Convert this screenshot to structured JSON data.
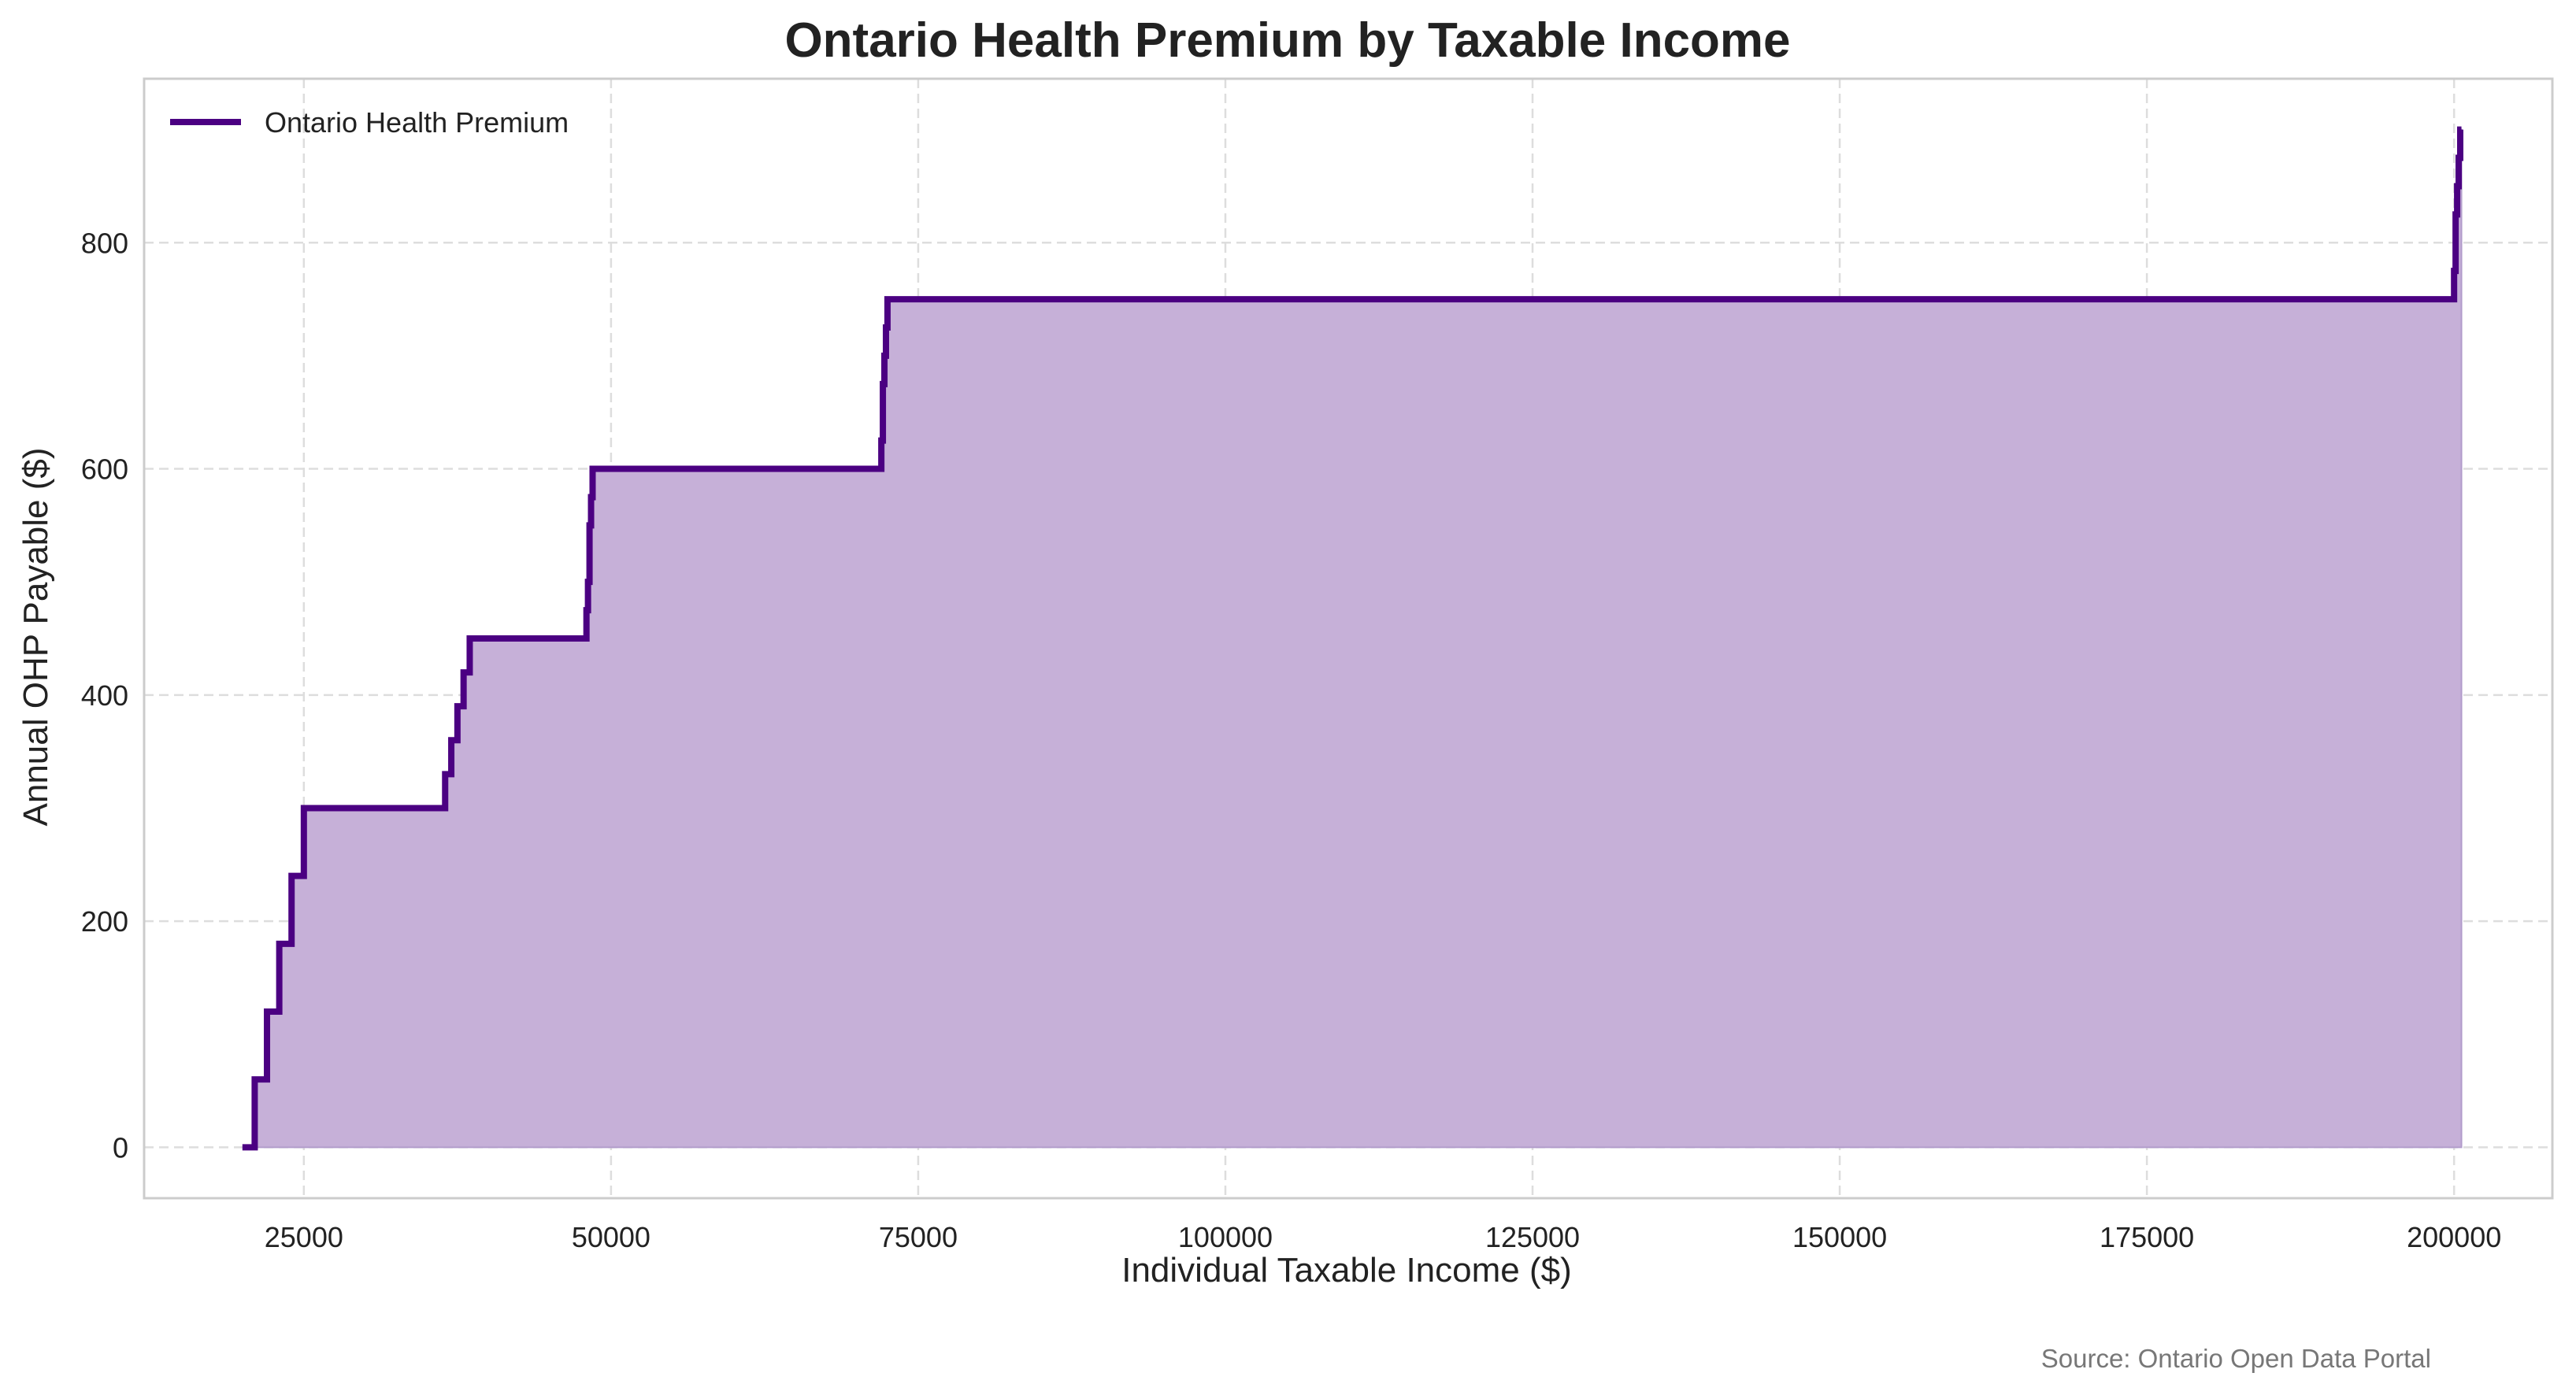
{
  "chart_data": {
    "type": "line",
    "title": "Ontario Health Premium by Taxable Income",
    "xlabel": "Individual Taxable Income ($)",
    "ylabel": "Annual OHP Payable ($)",
    "xlim": [
      12000,
      208000
    ],
    "ylim": [
      -45,
      945
    ],
    "xticks": [
      25000,
      50000,
      75000,
      100000,
      125000,
      150000,
      175000,
      200000
    ],
    "yticks": [
      0,
      200,
      400,
      600,
      800
    ],
    "grid": true,
    "legend_position": "top-left",
    "fill_under_line": true,
    "line_color": "#4B0082",
    "fill_color": "#C6B0D8",
    "series": [
      {
        "name": "Ontario Health Premium",
        "step": "post",
        "x": [
          20000,
          21000,
          22000,
          23000,
          24000,
          25000,
          36500,
          37000,
          37500,
          38000,
          38500,
          48000,
          48125,
          48250,
          48375,
          48500,
          72000,
          72125,
          72250,
          72375,
          72500,
          200000,
          200125,
          200250,
          200375,
          200500,
          200600
        ],
        "y": [
          0,
          60,
          120,
          180,
          240,
          300,
          330,
          360,
          390,
          420,
          450,
          475,
          500,
          550,
          575,
          600,
          625,
          675,
          700,
          725,
          750,
          775,
          825,
          850,
          875,
          900,
          900
        ]
      }
    ],
    "annotations": [
      "Source: Ontario Open Data Portal"
    ]
  }
}
